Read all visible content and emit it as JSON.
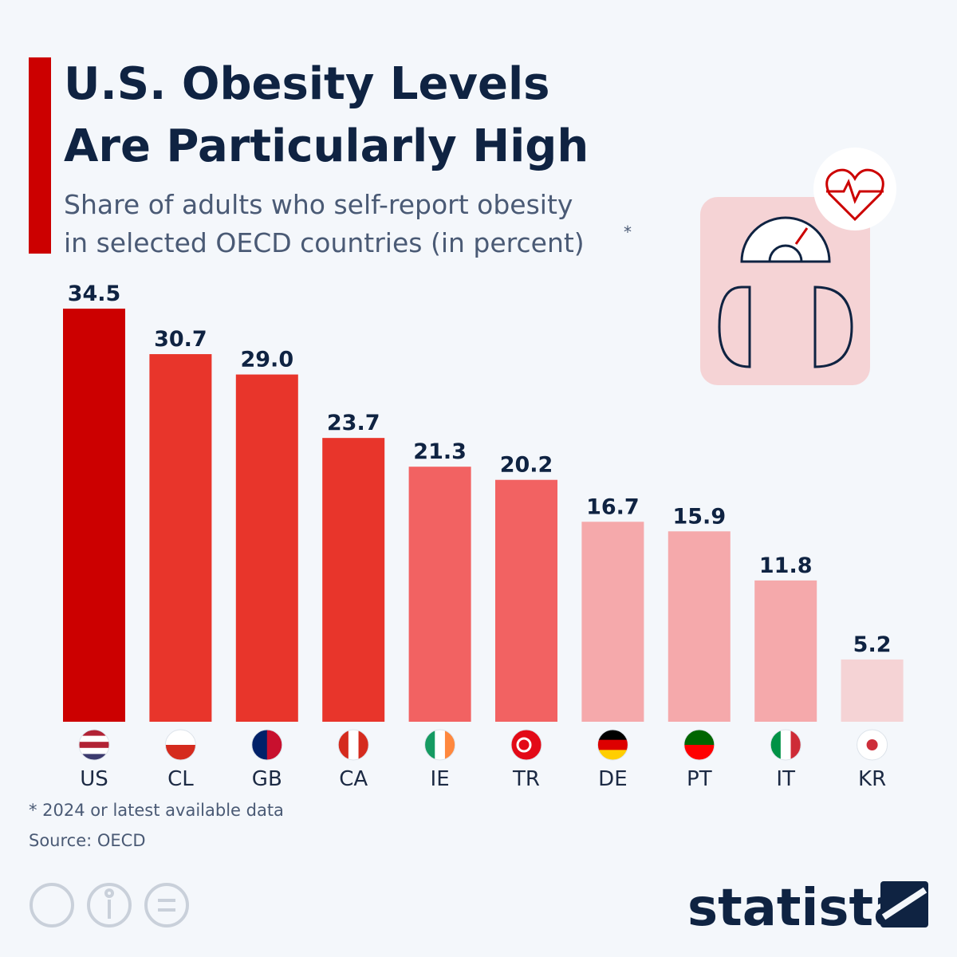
{
  "chart_data": {
    "type": "bar",
    "title": [
      "U.S. Obesity Levels",
      "Are Particularly High"
    ],
    "subtitle": [
      "Share of adults who self-report obesity",
      "in selected OECD countries (in percent)"
    ],
    "subtitle_mark": "*",
    "categories": [
      "US",
      "CL",
      "GB",
      "CA",
      "IE",
      "TR",
      "DE",
      "PT",
      "IT",
      "KR"
    ],
    "values": [
      34.5,
      30.7,
      29.0,
      23.7,
      21.3,
      20.2,
      16.7,
      15.9,
      11.8,
      5.2
    ],
    "value_labels": [
      "34.5",
      "30.7",
      "29.0",
      "23.7",
      "21.3",
      "20.2",
      "16.7",
      "15.9",
      "11.8",
      "5.2"
    ],
    "colors": [
      "#cc0000",
      "#e8352b",
      "#e8352b",
      "#e8352b",
      "#f26262",
      "#f26262",
      "#f5a9ab",
      "#f5a9ab",
      "#f5a9ab",
      "#f5d3d5"
    ],
    "footnote": "* 2024 or latest available data",
    "source": "Source: OECD",
    "brand": "statista"
  }
}
